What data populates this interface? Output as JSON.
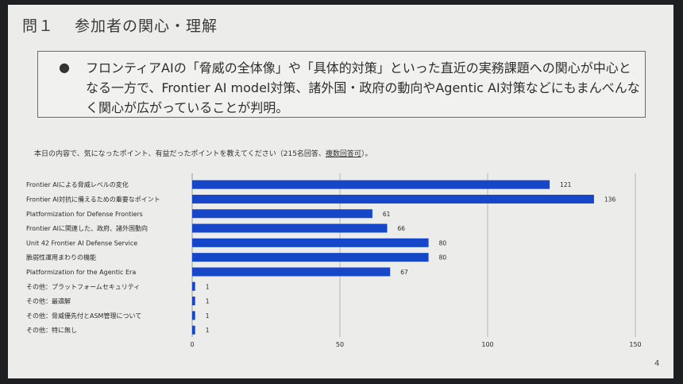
{
  "slide": {
    "number": "問１",
    "title": "参加者の関心・理解",
    "bullet_symbol": "●",
    "summary": "フロンティアAIの「脅威の全体像」や「具体的対策」といった直近の実務課題への関心が中心となる一方で、Frontier AI model対策、諸外国・政府の動向やAgentic AI対策などにもまんべんなく関心が広がっていることが判明。",
    "question_prefix": "本日の内容で、気になったポイント、有益だったポイントを教えてください（215名回答、",
    "question_underlined": "複数回答可",
    "question_suffix": "）。",
    "page_number": "4"
  },
  "colors": {
    "bar": "#1747c9",
    "grid": "#a9a9a9",
    "text": "#2a2a2a"
  },
  "chart_data": {
    "type": "bar",
    "orientation": "horizontal",
    "categories": [
      "Frontier AIによる脅威レベルの変化",
      "Frontier AI対抗に備えるための重要なポイント",
      "Platformization for Defense Frontiers",
      "Frontier AIに関連した、政府、諸外国動向",
      "Unit 42 Frontier AI Defense Service",
      "脆弱性運用まわりの機能",
      "Platformization for the Agentic Era",
      "その他：プラットフォームセキュリティ",
      "その他：最適解",
      "その他：脅威優先付とASM管理について",
      "その他：特に無し"
    ],
    "values": [
      121,
      136,
      61,
      66,
      80,
      80,
      67,
      1,
      1,
      1,
      1
    ],
    "data_labels": [
      "121",
      "136",
      "61",
      "66",
      "80",
      "80",
      "67",
      "1",
      "1",
      "1",
      "1"
    ],
    "xlim": [
      0,
      150
    ],
    "ticks": [
      0,
      50,
      100,
      150
    ],
    "tick_labels": [
      "0",
      "50",
      "100",
      "150"
    ],
    "grid": true,
    "legend": "none",
    "title": "",
    "xlabel": "",
    "ylabel": ""
  }
}
